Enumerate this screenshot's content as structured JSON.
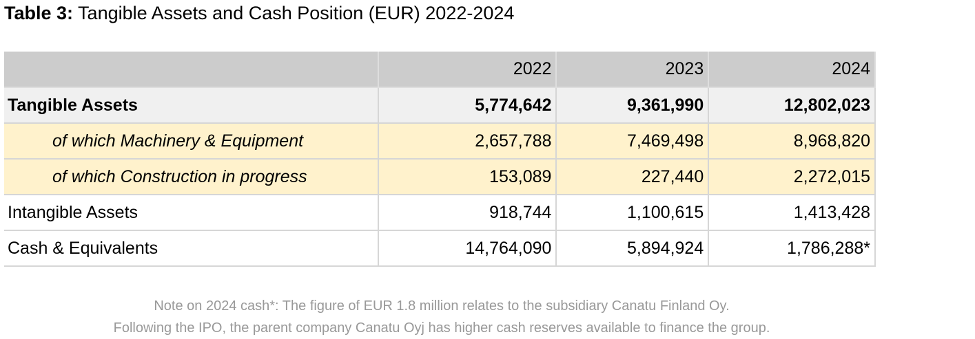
{
  "title": {
    "lead": "Table 3:",
    "text": "Tangible Assets and Cash Position (EUR) 2022-2024"
  },
  "table": {
    "header": [
      "",
      "2022",
      "2023",
      "2024"
    ],
    "rows": [
      {
        "label": "Tangible Assets",
        "values": [
          "5,774,642",
          "9,361,990",
          "12,802,023"
        ]
      },
      {
        "label": "of which Machinery & Equipment",
        "values": [
          "2,657,788",
          "7,469,498",
          "8,968,820"
        ]
      },
      {
        "label": "of which Construction in progress",
        "values": [
          "153,089",
          "227,440",
          "2,272,015"
        ]
      },
      {
        "label": "Intangible Assets",
        "values": [
          "918,744",
          "1,100,615",
          "1,413,428"
        ]
      },
      {
        "label": "Cash & Equivalents",
        "values": [
          "14,764,090",
          "5,894,924",
          "1,786,288*"
        ]
      }
    ]
  },
  "note": {
    "line1": "Note on 2024 cash*: The figure of EUR 1.8 million relates to the subsidiary Canatu Finland Oy.",
    "line2": "Following the IPO, the parent company Canatu Oyj has higher cash reserves available to finance the group."
  },
  "colors": {
    "header_bg": "#cccccc",
    "main_row_bg": "#f0f0f0",
    "sub_row_bg": "#fff2cc",
    "note_text": "#999999"
  }
}
